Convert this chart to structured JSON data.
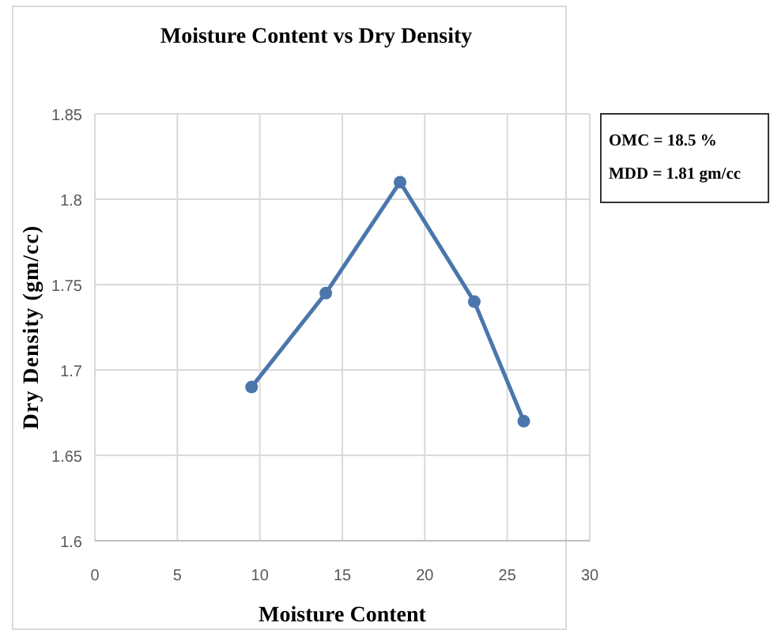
{
  "chart_data": {
    "type": "line",
    "title": "Moisture Content vs Dry Density",
    "xlabel": "Moisture Content",
    "ylabel": "Dry Density (gm/cc)",
    "x": [
      9.5,
      14,
      18.5,
      23,
      26
    ],
    "series": [
      {
        "color": "#4a76ac",
        "values": [
          1.69,
          1.745,
          1.81,
          1.74,
          1.67
        ]
      }
    ],
    "xlim": [
      0,
      30
    ],
    "xticks": [
      0,
      5,
      10,
      15,
      20,
      25,
      30
    ],
    "ylim": [
      1.6,
      1.85
    ],
    "yticks": [
      1.6,
      1.65,
      1.7,
      1.75,
      1.8,
      1.85
    ],
    "grid": true,
    "marker": "circle",
    "annotations": [
      "OMC = 18.5 %",
      "MDD = 1.81 gm/cc"
    ]
  }
}
